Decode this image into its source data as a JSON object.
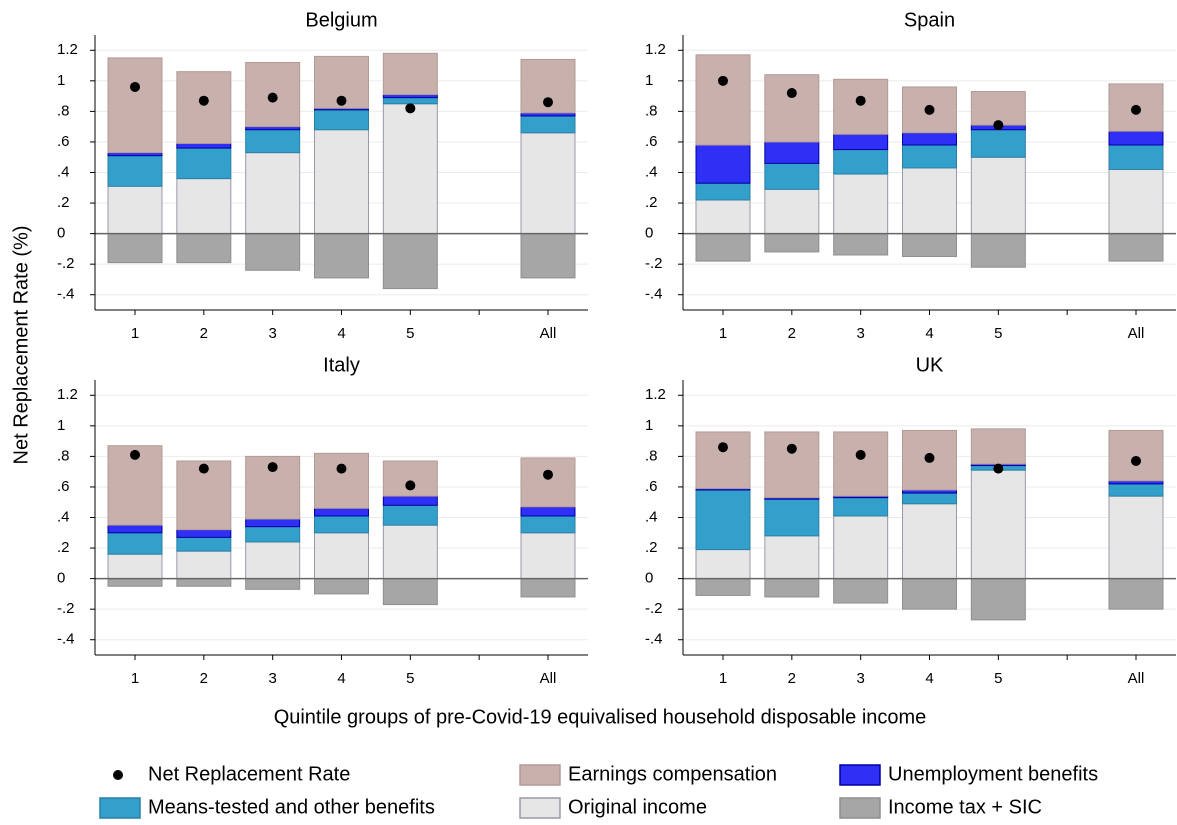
{
  "ylabel": "Net Replacement Rate (%)",
  "xlabel": "Quintile groups of pre-Covid-19 equivalised household disposable income",
  "legend": [
    {
      "name": "Net Replacement Rate",
      "color": "#000000",
      "marker": "dot"
    },
    {
      "name": "Earnings compensation",
      "color": "#c8b0ad",
      "marker": "bar"
    },
    {
      "name": "Unemployment benefits",
      "color": "#2f2ff5",
      "marker": "bar"
    },
    {
      "name": "Means-tested and other benefits",
      "color": "#33a0cc",
      "marker": "bar"
    },
    {
      "name": "Original income",
      "color": "#e6e6e6",
      "marker": "bar"
    },
    {
      "name": "Income tax + SIC",
      "color": "#a6a6a6",
      "marker": "bar"
    }
  ],
  "chart_data": [
    {
      "type": "bar",
      "title": "Belgium",
      "categories": [
        "1",
        "2",
        "3",
        "4",
        "5",
        null,
        "All"
      ],
      "series": [
        {
          "values": [
            0.96,
            0.87,
            0.89,
            0.87,
            0.82,
            null,
            0.86
          ]
        },
        {
          "values": [
            0.62,
            0.47,
            0.42,
            0.34,
            0.27,
            null,
            0.35
          ]
        },
        {
          "values": [
            0.02,
            0.03,
            0.02,
            0.01,
            0.02,
            null,
            0.02
          ]
        },
        {
          "values": [
            0.2,
            0.2,
            0.15,
            0.13,
            0.04,
            null,
            0.11
          ]
        },
        {
          "values": [
            0.31,
            0.36,
            0.53,
            0.68,
            0.85,
            null,
            0.66
          ]
        },
        {
          "values": [
            -0.19,
            -0.19,
            -0.24,
            -0.29,
            -0.36,
            null,
            -0.29
          ]
        }
      ],
      "ylim": [
        -0.5,
        1.3
      ],
      "yticks": [
        {
          "value": -0.4,
          "label": "-.4"
        },
        {
          "value": -0.2,
          "label": "-.2"
        },
        0,
        {
          "value": 0.2,
          "label": ".2"
        },
        {
          "value": 0.4,
          "label": ".4"
        },
        {
          "value": 0.6,
          "label": ".6"
        },
        {
          "value": 0.8,
          "label": ".8"
        },
        1,
        1.2
      ],
      "grid": true
    },
    {
      "type": "bar",
      "title": "Spain",
      "categories": [
        "1",
        "2",
        "3",
        "4",
        "5",
        null,
        "All"
      ],
      "series": [
        {
          "values": [
            1.0,
            0.92,
            0.87,
            0.81,
            0.71,
            null,
            0.81
          ]
        },
        {
          "values": [
            0.59,
            0.44,
            0.36,
            0.3,
            0.22,
            null,
            0.31
          ]
        },
        {
          "values": [
            0.25,
            0.14,
            0.1,
            0.08,
            0.03,
            null,
            0.09
          ]
        },
        {
          "values": [
            0.11,
            0.17,
            0.16,
            0.15,
            0.18,
            null,
            0.16
          ]
        },
        {
          "values": [
            0.22,
            0.29,
            0.39,
            0.43,
            0.5,
            null,
            0.42
          ]
        },
        {
          "values": [
            -0.18,
            -0.12,
            -0.14,
            -0.15,
            -0.22,
            null,
            -0.18
          ]
        }
      ],
      "ylim": [
        -0.5,
        1.3
      ],
      "yticks": [
        {
          "value": -0.4,
          "label": "-.4"
        },
        {
          "value": -0.2,
          "label": "-.2"
        },
        0,
        {
          "value": 0.2,
          "label": ".2"
        },
        {
          "value": 0.4,
          "label": ".4"
        },
        {
          "value": 0.6,
          "label": ".6"
        },
        {
          "value": 0.8,
          "label": ".8"
        },
        1,
        1.2
      ],
      "grid": true
    },
    {
      "type": "bar",
      "title": "Italy",
      "categories": [
        "1",
        "2",
        "3",
        "4",
        "5",
        null,
        "All"
      ],
      "series": [
        {
          "values": [
            0.81,
            0.72,
            0.73,
            0.72,
            0.61,
            null,
            0.68
          ]
        },
        {
          "values": [
            0.52,
            0.45,
            0.41,
            0.36,
            0.23,
            null,
            0.32
          ]
        },
        {
          "values": [
            0.05,
            0.05,
            0.05,
            0.05,
            0.06,
            null,
            0.06
          ]
        },
        {
          "values": [
            0.14,
            0.09,
            0.1,
            0.11,
            0.13,
            null,
            0.11
          ]
        },
        {
          "values": [
            0.16,
            0.18,
            0.24,
            0.3,
            0.35,
            null,
            0.3
          ]
        },
        {
          "values": [
            -0.05,
            -0.05,
            -0.07,
            -0.1,
            -0.17,
            null,
            -0.12
          ]
        }
      ],
      "ylim": [
        -0.5,
        1.3
      ],
      "yticks": [
        {
          "value": -0.4,
          "label": "-.4"
        },
        {
          "value": -0.2,
          "label": "-.2"
        },
        0,
        {
          "value": 0.2,
          "label": ".2"
        },
        {
          "value": 0.4,
          "label": ".4"
        },
        {
          "value": 0.6,
          "label": ".6"
        },
        {
          "value": 0.8,
          "label": ".8"
        },
        1,
        1.2
      ],
      "grid": true
    },
    {
      "type": "bar",
      "title": "UK",
      "categories": [
        "1",
        "2",
        "3",
        "4",
        "5",
        null,
        "All"
      ],
      "series": [
        {
          "values": [
            0.86,
            0.85,
            0.81,
            0.79,
            0.72,
            null,
            0.77
          ]
        },
        {
          "values": [
            0.37,
            0.43,
            0.42,
            0.39,
            0.23,
            null,
            0.33
          ]
        },
        {
          "values": [
            0.01,
            0.01,
            0.01,
            0.02,
            0.01,
            null,
            0.02
          ]
        },
        {
          "values": [
            0.39,
            0.24,
            0.12,
            0.07,
            0.03,
            null,
            0.08
          ]
        },
        {
          "values": [
            0.19,
            0.28,
            0.41,
            0.49,
            0.71,
            null,
            0.54
          ]
        },
        {
          "values": [
            -0.11,
            -0.12,
            -0.16,
            -0.2,
            -0.27,
            null,
            -0.2
          ]
        }
      ],
      "ylim": [
        -0.5,
        1.3
      ],
      "yticks": [
        {
          "value": -0.4,
          "label": "-.4"
        },
        {
          "value": -0.2,
          "label": "-.2"
        },
        0,
        {
          "value": 0.2,
          "label": ".2"
        },
        {
          "value": 0.4,
          "label": ".4"
        },
        {
          "value": 0.6,
          "label": ".6"
        },
        {
          "value": 0.8,
          "label": ".8"
        },
        1,
        1.2
      ],
      "grid": true
    }
  ]
}
